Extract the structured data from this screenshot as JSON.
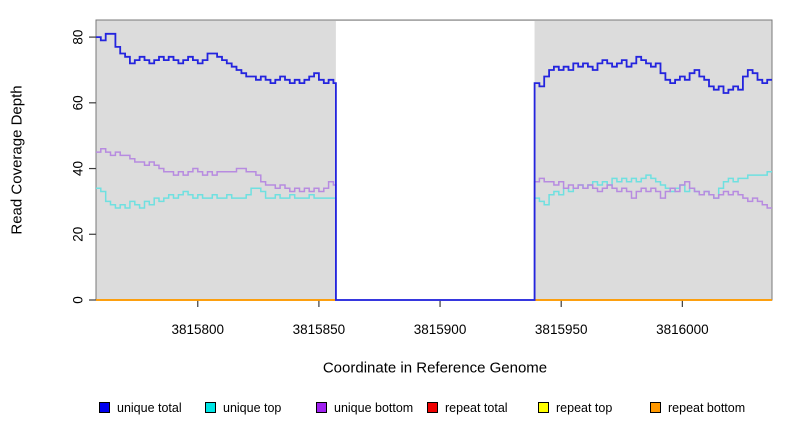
{
  "figure": {
    "background": "#ffffff",
    "panel_background": "#dcdcdc",
    "panel_border_color": "#787878",
    "tick_color": "#3c3c3c",
    "text_color": "#000000"
  },
  "chart_data": {
    "type": "line",
    "subtype": "step-coverage",
    "title": "",
    "xlabel": "Coordinate in Reference Genome",
    "ylabel": "Read Coverage Depth",
    "xlim": [
      3815758,
      3816037
    ],
    "ylim": [
      0,
      85.2
    ],
    "grid": "off",
    "legend_position": "bottom",
    "xticks": [
      {
        "coord": 3815800,
        "label": "3815800"
      },
      {
        "coord": 3815850,
        "label": "3815850"
      },
      {
        "coord": 3815900,
        "label": "3815900"
      },
      {
        "coord": 3815950,
        "label": "3815950"
      },
      {
        "coord": 3816000,
        "label": "3816000"
      }
    ],
    "yticks": [
      {
        "value": 0,
        "label": "0"
      },
      {
        "value": 20,
        "label": "20"
      },
      {
        "value": 40,
        "label": "40"
      },
      {
        "value": 60,
        "label": "60"
      },
      {
        "value": 80,
        "label": "80"
      }
    ],
    "gap_region": {
      "start": 3815857,
      "end": 3815939,
      "fill": "#ffffff"
    },
    "series": [
      {
        "name": "repeat total",
        "color": "#de0000",
        "width": 1.4,
        "connected": false,
        "segments": [
          {
            "start": 3815758,
            "step": 99,
            "end": 3815857,
            "values": [
              0
            ]
          },
          {
            "start": 3815939,
            "step": 98,
            "end": 3816037,
            "values": [
              0
            ]
          }
        ]
      },
      {
        "name": "repeat top",
        "color": "#ffee00",
        "width": 1.4,
        "connected": false,
        "segments": [
          {
            "start": 3815758,
            "step": 99,
            "end": 3815857,
            "values": [
              0
            ]
          },
          {
            "start": 3815939,
            "step": 98,
            "end": 3816037,
            "values": [
              0
            ]
          }
        ]
      },
      {
        "name": "repeat bottom",
        "color": "#ff9800",
        "width": 1.6,
        "connected": false,
        "segments": [
          {
            "start": 3815758,
            "step": 99,
            "end": 3815857,
            "values": [
              0
            ]
          },
          {
            "start": 3815939,
            "step": 98,
            "end": 3816037,
            "values": [
              0
            ]
          }
        ]
      },
      {
        "name": "unique top",
        "color": "#6fe0e0",
        "width": 1.5,
        "connected": true,
        "segments": [
          {
            "start": 3815758,
            "step": 2,
            "end": 3815857,
            "values": [
              34,
              33,
              30,
              29,
              28,
              29,
              28,
              30,
              29,
              28,
              30,
              29,
              31,
              30,
              31,
              32,
              31,
              32,
              33,
              32,
              31,
              32,
              31,
              31,
              32,
              31,
              31,
              32,
              31,
              31,
              31,
              32,
              34,
              34,
              33,
              31,
              31,
              32,
              31,
              31,
              32,
              31,
              31,
              31,
              32,
              31,
              31,
              31,
              31,
              31
            ]
          },
          {
            "start": 3815857,
            "step": 82,
            "end": 3815939,
            "values": [
              0
            ]
          },
          {
            "start": 3815939,
            "step": 2,
            "end": 3816037,
            "values": [
              31,
              30,
              29,
              32,
              33,
              32,
              34,
              33,
              34,
              35,
              34,
              35,
              36,
              35,
              36,
              35,
              37,
              36,
              37,
              36,
              37,
              36,
              37,
              38,
              37,
              36,
              35,
              34,
              33,
              34,
              35,
              33,
              34,
              33,
              32,
              33,
              32,
              31,
              34,
              36,
              37,
              36,
              37,
              37,
              38,
              38,
              38,
              38,
              39
            ]
          }
        ]
      },
      {
        "name": "unique bottom",
        "color": "#b78be0",
        "width": 1.5,
        "connected": true,
        "segments": [
          {
            "start": 3815758,
            "step": 2,
            "end": 3815857,
            "values": [
              45,
              46,
              45,
              44,
              45,
              44,
              44,
              43,
              42,
              42,
              41,
              42,
              41,
              40,
              39,
              39,
              38,
              39,
              38,
              39,
              40,
              39,
              38,
              39,
              38,
              39,
              39,
              39,
              39,
              40,
              40,
              39,
              39,
              38,
              36,
              35,
              35,
              34,
              35,
              34,
              33,
              34,
              33,
              34,
              33,
              34,
              33,
              34,
              36,
              35
            ]
          },
          {
            "start": 3815857,
            "step": 82,
            "end": 3815939,
            "values": [
              0
            ]
          },
          {
            "start": 3815939,
            "step": 2,
            "end": 3816037,
            "values": [
              36,
              37,
              36,
              36,
              35,
              36,
              34,
              35,
              34,
              35,
              34,
              35,
              34,
              33,
              34,
              35,
              34,
              33,
              34,
              33,
              31,
              33,
              34,
              33,
              34,
              33,
              31,
              33,
              34,
              33,
              35,
              36,
              34,
              33,
              32,
              33,
              32,
              31,
              32,
              33,
              32,
              33,
              32,
              31,
              30,
              31,
              30,
              29,
              28
            ]
          }
        ]
      },
      {
        "name": "unique total",
        "color": "#2424de",
        "width": 1.8,
        "connected": true,
        "segments": [
          {
            "start": 3815758,
            "step": 2,
            "end": 3815857,
            "values": [
              80,
              79,
              81,
              81,
              77,
              75,
              74,
              72,
              73,
              74,
              73,
              72,
              73,
              74,
              73,
              74,
              73,
              72,
              73,
              74,
              73,
              72,
              73,
              75,
              75,
              74,
              73,
              72,
              71,
              70,
              69,
              68,
              68,
              67,
              68,
              67,
              66,
              67,
              68,
              67,
              66,
              67,
              66,
              67,
              68,
              69,
              67,
              66,
              67,
              66
            ]
          },
          {
            "start": 3815857,
            "step": 82,
            "end": 3815939,
            "values": [
              0
            ]
          },
          {
            "start": 3815939,
            "step": 2,
            "end": 3816037,
            "values": [
              66,
              65,
              68,
              70,
              71,
              70,
              71,
              70,
              72,
              71,
              72,
              71,
              70,
              72,
              73,
              72,
              71,
              72,
              73,
              71,
              72,
              74,
              73,
              72,
              71,
              72,
              69,
              67,
              66,
              67,
              68,
              67,
              69,
              70,
              68,
              67,
              65,
              64,
              65,
              63,
              64,
              65,
              64,
              68,
              70,
              69,
              67,
              66,
              67
            ]
          }
        ]
      }
    ]
  },
  "legend": {
    "items": [
      {
        "label": "unique total",
        "color": "#0000ee"
      },
      {
        "label": "unique top",
        "color": "#00e5e5"
      },
      {
        "label": "unique bottom",
        "color": "#a020f0"
      },
      {
        "label": "repeat total",
        "color": "#ee0000"
      },
      {
        "label": "repeat top",
        "color": "#ffff00"
      },
      {
        "label": "repeat bottom",
        "color": "#ff9800"
      }
    ]
  }
}
